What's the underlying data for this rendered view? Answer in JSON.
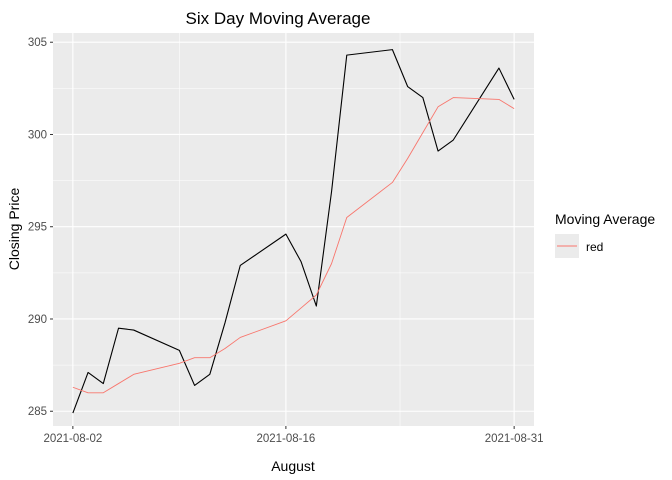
{
  "chart_data": {
    "type": "line",
    "title": "Six Day Moving Average",
    "xlabel": "August",
    "ylabel": "Closing Price",
    "x_ticks": [
      "2021-08-02",
      "2021-08-16",
      "2021-08-31"
    ],
    "y_ticks": [
      285,
      290,
      295,
      300,
      305
    ],
    "xlim": [
      "2021-08-02",
      "2021-08-31"
    ],
    "ylim": [
      284.2,
      305.5
    ],
    "grid": true,
    "legend": {
      "title": "Moving Average",
      "position": "right",
      "entries": [
        "red"
      ]
    },
    "x": [
      "2021-08-02",
      "2021-08-03",
      "2021-08-04",
      "2021-08-05",
      "2021-08-06",
      "2021-08-09",
      "2021-08-10",
      "2021-08-11",
      "2021-08-12",
      "2021-08-13",
      "2021-08-16",
      "2021-08-17",
      "2021-08-18",
      "2021-08-19",
      "2021-08-20",
      "2021-08-23",
      "2021-08-24",
      "2021-08-25",
      "2021-08-26",
      "2021-08-27",
      "2021-08-30",
      "2021-08-31"
    ],
    "series": [
      {
        "color": "#000000",
        "values": [
          284.9,
          287.1,
          286.5,
          289.5,
          289.4,
          288.3,
          286.4,
          287.0,
          289.8,
          292.9,
          294.6,
          293.1,
          290.7,
          296.9,
          304.3,
          304.6,
          302.6,
          302.0,
          299.1,
          299.7,
          303.6,
          301.9
        ]
      },
      {
        "name": "red",
        "color": "#F8766D",
        "values": [
          286.3,
          286.0,
          286.0,
          286.5,
          287.0,
          287.6,
          287.9,
          287.9,
          288.4,
          289.0,
          289.9,
          290.6,
          291.3,
          293.0,
          295.5,
          297.4,
          298.7,
          300.1,
          301.5,
          302.0,
          301.9,
          301.4
        ]
      }
    ]
  }
}
